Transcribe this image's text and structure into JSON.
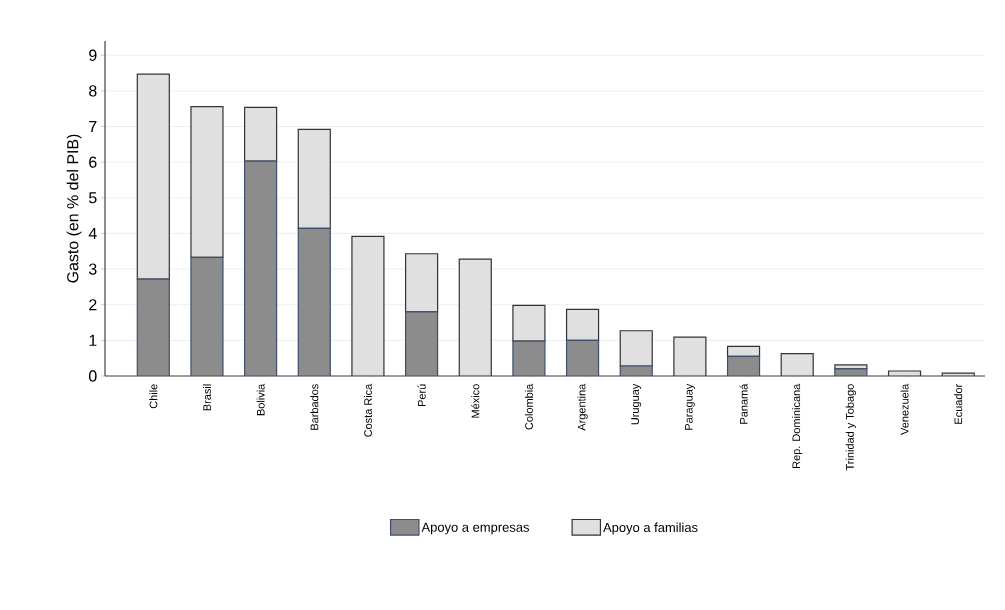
{
  "chart_data": {
    "type": "bar",
    "stacked": true,
    "ylabel": "Gasto (en % del PIB)",
    "categories": [
      "Chile",
      "Brasil",
      "Bolivia",
      "Barbados",
      "Costa Rica",
      "Perú",
      "México",
      "Colombia",
      "Argentina",
      "Uruguay",
      "Paraguay",
      "Panamá",
      "Rep. Dominicana",
      "Trinidad y Tobago",
      "Venezuela",
      "Ecuador"
    ],
    "series": [
      {
        "name": "Apoyo a empresas",
        "color": "#8c8c8c",
        "values": [
          2.72,
          3.33,
          6.03,
          4.14,
          0,
          1.8,
          0,
          0.98,
          1.0,
          0.28,
          0,
          0.55,
          0,
          0.2,
          0,
          0
        ]
      },
      {
        "name": "Apoyo a familias",
        "color": "#e0e0e0",
        "values": [
          5.75,
          4.23,
          1.51,
          2.78,
          3.92,
          1.63,
          3.28,
          1.0,
          0.87,
          0.99,
          1.09,
          0.28,
          0.63,
          0.11,
          0.14,
          0.08
        ]
      }
    ],
    "ylim": [
      0,
      9.4
    ],
    "yticks": [
      0,
      1,
      2,
      3,
      4,
      5,
      6,
      7,
      8,
      9
    ],
    "grid": "y",
    "legend": "bottom"
  }
}
